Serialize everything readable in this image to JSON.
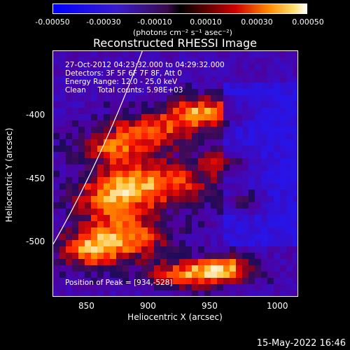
{
  "colorbar": {
    "tick_labels": [
      "-0.00050",
      "-0.00030",
      "-0.00010",
      "0.00010",
      "0.00030",
      "0.00050"
    ],
    "unit": "(photons cm⁻² s⁻¹ asec⁻²)",
    "range": [
      -0.0005,
      0.0005
    ]
  },
  "chart_data": {
    "type": "heatmap",
    "title": "Reconstructed RHESSI Image",
    "xlabel": "Heliocentric X (arcsec)",
    "ylabel": "Heliocentric Y (arcsec)",
    "xlim": [
      823,
      1015
    ],
    "ylim": [
      -545,
      -352
    ],
    "x_ticks": [
      850,
      900,
      950,
      1000
    ],
    "y_ticks": [
      -400,
      -450,
      -500
    ],
    "info_lines": [
      "27-Oct-2012 04:23:32.000 to 04:29:32.000",
      "Detectors: 3F 5F 6F 7F 8F, Att 0",
      "Energy Range: 12.0 - 25.0 keV",
      "Clean     Total counts: 5.98E+03"
    ],
    "peak_label": "Position of Peak = [934,-528]",
    "peak": [
      934,
      -528
    ]
  },
  "footer": {
    "timestamp": "15-May-2022 16:46"
  }
}
